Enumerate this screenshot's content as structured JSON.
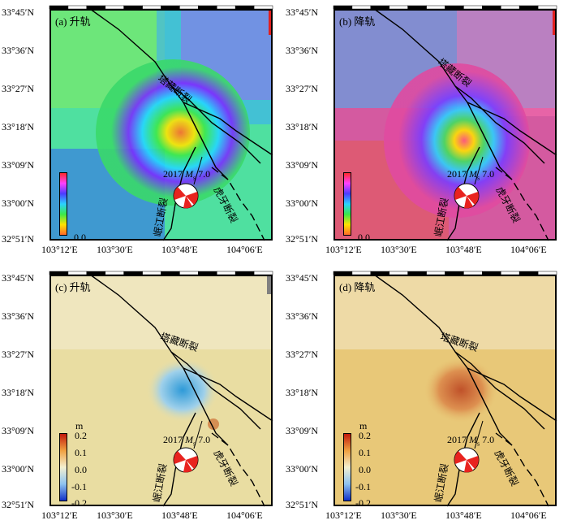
{
  "panels": [
    {
      "id": "a",
      "label": "(a) 升轨",
      "unit": "",
      "cb_top": "",
      "cb_mid": "",
      "cb_bot": "0.0"
    },
    {
      "id": "b",
      "label": "(b) 降轨",
      "unit": "",
      "cb_top": "",
      "cb_mid": "",
      "cb_bot": "0.0"
    },
    {
      "id": "c",
      "label": "(c) 升轨",
      "unit": "m",
      "cb_top": "0.2",
      "cb_mid": "0.0",
      "cb_bot": "-0.2",
      "cb_t1": "0.1",
      "cb_b1": "-0.1"
    },
    {
      "id": "d",
      "label": "(d) 降轨",
      "unit": "m",
      "cb_top": "0.2",
      "cb_mid": "0.0",
      "cb_bot": "-0.2",
      "cb_t1": "0.1",
      "cb_b1": "-0.1"
    }
  ],
  "lat_ticks": [
    "33°45′N",
    "33°36′N",
    "33°27′N",
    "33°18′N",
    "33°09′N",
    "33°00′N",
    "32°51′N"
  ],
  "lon_ticks": [
    "103°12′E",
    "103°30′E",
    "103°48′E",
    "104°06′E"
  ],
  "faults": {
    "tazang": "塔藏断裂",
    "minjiang": "岷江断裂",
    "huya": "虎牙断裂"
  },
  "event": {
    "year": "2017",
    "m": "M",
    "mag": "7.0"
  },
  "colors": {
    "fault": "#000000",
    "beachball_red": "#e8231f"
  }
}
